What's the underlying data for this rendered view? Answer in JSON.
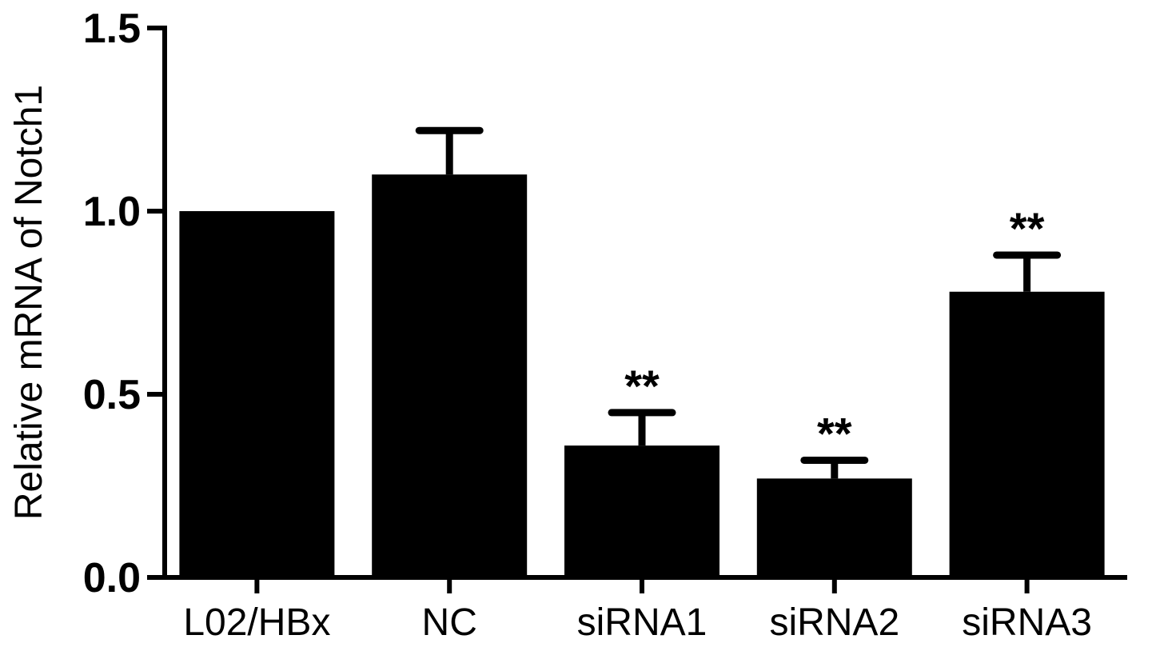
{
  "chart_data": {
    "type": "bar",
    "title": "",
    "xlabel": "",
    "ylabel": "Relative mRNA of Notch1",
    "ylim": [
      0,
      1.5
    ],
    "yticks": [
      0.0,
      0.5,
      1.0,
      1.5
    ],
    "ytick_labels": [
      "0.0",
      "0.5",
      "1.0",
      "1.5"
    ],
    "grid": false,
    "categories": [
      "L02/HBx",
      "NC",
      "siRNA1",
      "siRNA2",
      "siRNA3"
    ],
    "values": [
      1.0,
      1.1,
      0.36,
      0.27,
      0.78
    ],
    "errors": [
      0.0,
      0.12,
      0.09,
      0.05,
      0.1
    ],
    "annotations": [
      "",
      "",
      "**",
      "**",
      "**"
    ],
    "bar_color": "#000000"
  }
}
